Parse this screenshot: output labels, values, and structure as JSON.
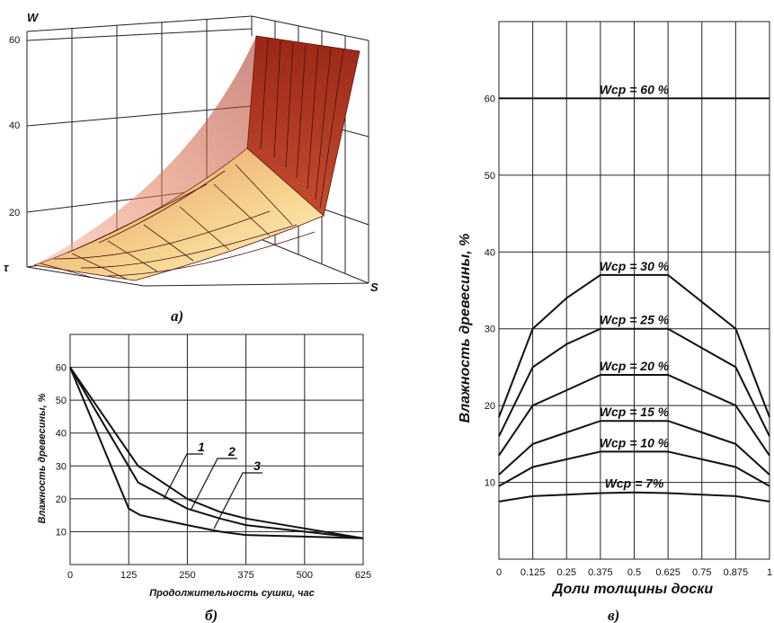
{
  "chart_data": [
    {
      "type": "surface",
      "caption": "а)",
      "axis_labels": {
        "vertical": "W",
        "left_horizontal": "τ",
        "right_horizontal": "S"
      },
      "z_ticks": [
        "20",
        "40",
        "60"
      ],
      "colors": {
        "high": "#a42a1c",
        "mid": "#e08a55",
        "low": "#fff3b8"
      }
    },
    {
      "type": "line",
      "caption": "б)",
      "xlabel": "Продолжительность сушки, час",
      "ylabel": "Влажность древесины, %",
      "x_ticks": [
        "0",
        "125",
        "250",
        "375",
        "500",
        "625"
      ],
      "y_ticks": [
        "10",
        "20",
        "30",
        "40",
        "50",
        "60"
      ],
      "xlim": [
        0,
        625
      ],
      "ylim": [
        0,
        70
      ],
      "grid": true,
      "series": [
        {
          "name": "1",
          "x": [
            0,
            145,
            250,
            320,
            375,
            500,
            625
          ],
          "y": [
            60,
            30,
            20,
            16,
            14,
            11,
            8
          ]
        },
        {
          "name": "2",
          "x": [
            0,
            145,
            250,
            320,
            375,
            500,
            625
          ],
          "y": [
            60,
            25,
            17,
            14,
            12,
            10,
            8
          ]
        },
        {
          "name": "3",
          "x": [
            0,
            125,
            150,
            250,
            320,
            375,
            500,
            625
          ],
          "y": [
            60,
            17,
            15,
            12,
            10,
            9,
            8.5,
            8
          ]
        }
      ]
    },
    {
      "type": "line",
      "caption": "в)",
      "xlabel": "Доли толщины доски",
      "ylabel": "Влажность древесины, %",
      "x_ticks": [
        "0",
        "0.125",
        "0.25",
        "0.375",
        "0.5",
        "0.625",
        "0.75",
        "0.875",
        "1"
      ],
      "y_ticks": [
        "10",
        "20",
        "30",
        "40",
        "50",
        "60"
      ],
      "xlim": [
        0,
        1
      ],
      "ylim": [
        0,
        70
      ],
      "grid": true,
      "series": [
        {
          "name": "Wcp = 60 %",
          "x": [
            0,
            0.125,
            0.25,
            0.375,
            0.5,
            0.625,
            0.75,
            0.875,
            1
          ],
          "y": [
            60,
            60,
            60,
            60,
            60,
            60,
            60,
            60,
            60
          ]
        },
        {
          "name": "Wcp = 30 %",
          "x": [
            0,
            0.125,
            0.25,
            0.375,
            0.5,
            0.625,
            0.75,
            0.875,
            1
          ],
          "y": [
            18.5,
            30,
            34,
            37,
            37,
            37,
            33.5,
            30,
            18.5
          ]
        },
        {
          "name": "Wcp = 25 %",
          "x": [
            0,
            0.125,
            0.25,
            0.375,
            0.5,
            0.625,
            0.75,
            0.875,
            1
          ],
          "y": [
            16,
            25,
            28,
            30,
            30,
            30,
            27.5,
            25,
            16
          ]
        },
        {
          "name": "Wcp = 20 %",
          "x": [
            0,
            0.125,
            0.25,
            0.375,
            0.5,
            0.625,
            0.75,
            0.875,
            1
          ],
          "y": [
            13.5,
            20,
            22,
            24,
            24,
            24,
            22,
            20,
            13.5
          ]
        },
        {
          "name": "Wcp = 15 %",
          "x": [
            0,
            0.125,
            0.25,
            0.375,
            0.5,
            0.625,
            0.75,
            0.875,
            1
          ],
          "y": [
            11,
            15,
            16.5,
            18,
            18,
            18,
            16.5,
            15,
            11
          ]
        },
        {
          "name": "Wcp = 10 %",
          "x": [
            0,
            0.125,
            0.25,
            0.375,
            0.5,
            0.625,
            0.75,
            0.875,
            1
          ],
          "y": [
            9.5,
            12,
            13,
            14,
            14,
            14,
            13,
            12,
            9.5
          ]
        },
        {
          "name": "Wcp =  7%",
          "x": [
            0,
            0.125,
            0.25,
            0.375,
            0.5,
            0.625,
            0.75,
            0.875,
            1
          ],
          "y": [
            7.5,
            8.2,
            8.4,
            8.6,
            8.7,
            8.6,
            8.4,
            8.2,
            7.5
          ]
        }
      ]
    }
  ]
}
